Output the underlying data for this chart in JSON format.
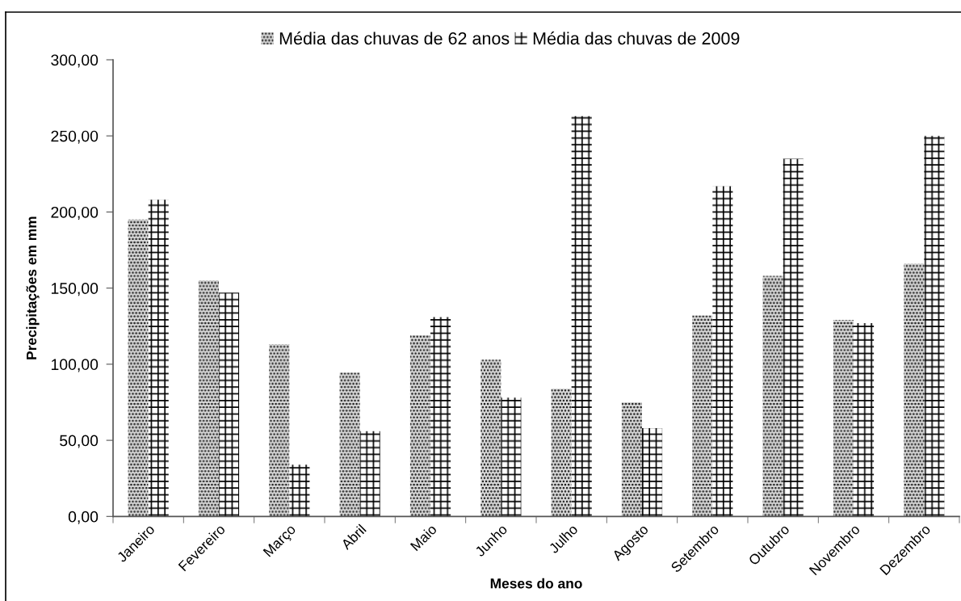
{
  "chart_data": {
    "type": "bar",
    "xlabel": "Meses do ano",
    "ylabel": "Precipitações em mm",
    "categories": [
      "Janeiro",
      "Fevereiro",
      "Março",
      "Abril",
      "Maio",
      "Junho",
      "Julho",
      "Agosto",
      "Setembro",
      "Outubro",
      "Novembro",
      "Dezembro"
    ],
    "series": [
      {
        "name": "Média das chuvas de 62 anos",
        "color": "#d9d9d9",
        "values": [
          195,
          155,
          113,
          94.5,
          119,
          103,
          84,
          75,
          132,
          158,
          129,
          166
        ]
      },
      {
        "name": "Média das chuvas de 2009",
        "color": "#ffffff",
        "values": [
          208,
          147,
          34,
          56,
          131,
          78,
          263,
          58,
          217,
          235,
          127,
          250
        ]
      }
    ],
    "ylim": [
      0,
      300
    ],
    "yticks": [
      {
        "value": 0,
        "label": "0,00"
      },
      {
        "value": 50,
        "label": "50,00"
      },
      {
        "value": 100,
        "label": "100,00"
      },
      {
        "value": 150,
        "label": "150,00"
      },
      {
        "value": 200,
        "label": "200,00"
      },
      {
        "value": 250,
        "label": "250,00"
      },
      {
        "value": 300,
        "label": "300,00"
      }
    ],
    "legend": "top",
    "grid": false
  }
}
